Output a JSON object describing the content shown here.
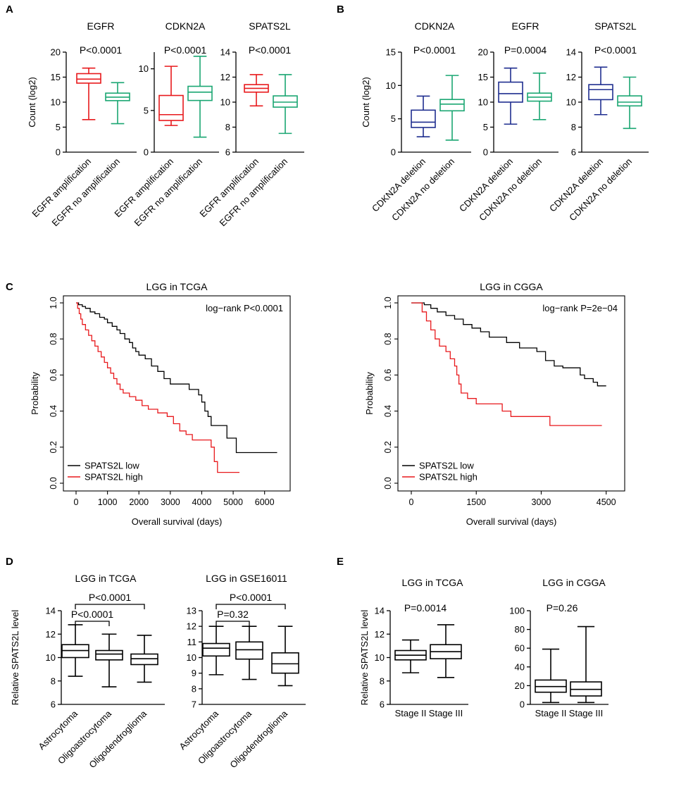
{
  "colors": {
    "red": "#e8191c",
    "green": "#1aa672",
    "blue": "#1f2e8f",
    "black": "#000000"
  },
  "chart_data": [
    {
      "panel": "A",
      "type": "boxplot",
      "title": "EGFR",
      "pvalue": "P<0.0001",
      "ylabel": "Count (log2)",
      "ylim": [
        0,
        20
      ],
      "yticks": [
        0,
        5,
        10,
        15,
        20
      ],
      "categories": [
        "EGFR amplification",
        "EGFR no amplification"
      ],
      "boxes": [
        {
          "min": 6.5,
          "q1": 13.8,
          "median": 14.6,
          "q3": 15.7,
          "max": 16.8,
          "color": "red"
        },
        {
          "min": 5.7,
          "q1": 10.3,
          "median": 11.0,
          "q3": 11.8,
          "max": 13.9,
          "color": "green"
        }
      ]
    },
    {
      "panel": "A",
      "type": "boxplot",
      "title": "CDKN2A",
      "pvalue": "P<0.0001",
      "ylabel": "",
      "ylim": [
        0,
        12
      ],
      "yticks": [
        0,
        5,
        10
      ],
      "categories": [
        "EGFR amplification",
        "EGFR no amplification"
      ],
      "boxes": [
        {
          "min": 3.2,
          "q1": 3.8,
          "median": 4.5,
          "q3": 6.8,
          "max": 10.3,
          "color": "red"
        },
        {
          "min": 1.8,
          "q1": 6.2,
          "median": 7.2,
          "q3": 7.9,
          "max": 11.5,
          "color": "green"
        }
      ]
    },
    {
      "panel": "A",
      "type": "boxplot",
      "title": "SPATS2L",
      "pvalue": "P<0.0001",
      "ylabel": "",
      "ylim": [
        6,
        14
      ],
      "yticks": [
        6,
        8,
        10,
        12,
        14
      ],
      "categories": [
        "EGFR amplification",
        "EGFR no amplification"
      ],
      "boxes": [
        {
          "min": 9.7,
          "q1": 10.8,
          "median": 11.1,
          "q3": 11.4,
          "max": 12.2,
          "color": "red"
        },
        {
          "min": 7.5,
          "q1": 9.6,
          "median": 10.0,
          "q3": 10.5,
          "max": 12.2,
          "color": "green"
        }
      ]
    },
    {
      "panel": "B",
      "type": "boxplot",
      "title": "CDKN2A",
      "pvalue": "P<0.0001",
      "ylabel": "Count (log2)",
      "ylim": [
        0,
        15
      ],
      "yticks": [
        0,
        5,
        10,
        15
      ],
      "categories": [
        "CDKN2A deletion",
        "CDKN2A no deletion"
      ],
      "boxes": [
        {
          "min": 2.3,
          "q1": 3.7,
          "median": 4.5,
          "q3": 6.3,
          "max": 8.4,
          "color": "blue"
        },
        {
          "min": 1.8,
          "q1": 6.2,
          "median": 7.2,
          "q3": 7.9,
          "max": 11.5,
          "color": "green"
        }
      ]
    },
    {
      "panel": "B",
      "type": "boxplot",
      "title": "EGFR",
      "pvalue": "P=0.0004",
      "ylabel": "",
      "ylim": [
        0,
        20
      ],
      "yticks": [
        0,
        5,
        10,
        15,
        20
      ],
      "categories": [
        "CDKN2A deletion",
        "CDKN2A no deletion"
      ],
      "boxes": [
        {
          "min": 5.6,
          "q1": 10.0,
          "median": 11.7,
          "q3": 14.0,
          "max": 16.8,
          "color": "blue"
        },
        {
          "min": 6.5,
          "q1": 10.2,
          "median": 11.0,
          "q3": 11.8,
          "max": 15.8,
          "color": "green"
        }
      ]
    },
    {
      "panel": "B",
      "type": "boxplot",
      "title": "SPATS2L",
      "pvalue": "P<0.0001",
      "ylabel": "",
      "ylim": [
        6,
        14
      ],
      "yticks": [
        6,
        8,
        10,
        12,
        14
      ],
      "categories": [
        "CDKN2A deletion",
        "CDKN2A no deletion"
      ],
      "boxes": [
        {
          "min": 9.0,
          "q1": 10.2,
          "median": 11.0,
          "q3": 11.4,
          "max": 12.8,
          "color": "blue"
        },
        {
          "min": 7.9,
          "q1": 9.7,
          "median": 10.0,
          "q3": 10.5,
          "max": 12.0,
          "color": "green"
        }
      ]
    },
    {
      "panel": "C",
      "type": "line",
      "subtype": "kaplan-meier",
      "title": "LGG in TCGA",
      "annotation": "log−rank P<0.0001",
      "xlabel": "Overall survival (days)",
      "ylabel": "Probability",
      "xlim": [
        0,
        6500
      ],
      "ylim": [
        0,
        1
      ],
      "xticks": [
        0,
        1000,
        2000,
        3000,
        4000,
        5000,
        6000
      ],
      "yticks": [
        0.0,
        0.2,
        0.4,
        0.6,
        0.8,
        1.0
      ],
      "ytick_labels": [
        "0.0",
        "0.2",
        "0.4",
        "0.6",
        "0.8",
        "1.0"
      ],
      "legend_position": "bottom-left",
      "series": [
        {
          "name": "SPATS2L low",
          "color": "black",
          "points": [
            [
              0,
              1.0
            ],
            [
              80,
              0.99
            ],
            [
              200,
              0.98
            ],
            [
              300,
              0.97
            ],
            [
              450,
              0.95
            ],
            [
              600,
              0.94
            ],
            [
              750,
              0.92
            ],
            [
              900,
              0.91
            ],
            [
              1000,
              0.89
            ],
            [
              1150,
              0.87
            ],
            [
              1300,
              0.85
            ],
            [
              1400,
              0.83
            ],
            [
              1550,
              0.8
            ],
            [
              1700,
              0.78
            ],
            [
              1800,
              0.75
            ],
            [
              1900,
              0.73
            ],
            [
              2000,
              0.71
            ],
            [
              2200,
              0.69
            ],
            [
              2400,
              0.65
            ],
            [
              2600,
              0.62
            ],
            [
              2800,
              0.58
            ],
            [
              3000,
              0.55
            ],
            [
              3600,
              0.52
            ],
            [
              3900,
              0.49
            ],
            [
              4000,
              0.45
            ],
            [
              4100,
              0.4
            ],
            [
              4200,
              0.37
            ],
            [
              4300,
              0.32
            ],
            [
              4800,
              0.25
            ],
            [
              5100,
              0.17
            ],
            [
              6400,
              0.17
            ]
          ]
        },
        {
          "name": "SPATS2L high",
          "color": "red",
          "points": [
            [
              0,
              1.0
            ],
            [
              50,
              0.97
            ],
            [
              100,
              0.94
            ],
            [
              150,
              0.91
            ],
            [
              200,
              0.88
            ],
            [
              300,
              0.85
            ],
            [
              400,
              0.82
            ],
            [
              500,
              0.79
            ],
            [
              600,
              0.76
            ],
            [
              700,
              0.73
            ],
            [
              800,
              0.7
            ],
            [
              900,
              0.67
            ],
            [
              1000,
              0.64
            ],
            [
              1100,
              0.61
            ],
            [
              1200,
              0.58
            ],
            [
              1300,
              0.55
            ],
            [
              1400,
              0.52
            ],
            [
              1500,
              0.5
            ],
            [
              1700,
              0.48
            ],
            [
              1900,
              0.46
            ],
            [
              2100,
              0.43
            ],
            [
              2300,
              0.41
            ],
            [
              2600,
              0.39
            ],
            [
              2900,
              0.37
            ],
            [
              3100,
              0.33
            ],
            [
              3300,
              0.29
            ],
            [
              3500,
              0.27
            ],
            [
              3700,
              0.24
            ],
            [
              4300,
              0.2
            ],
            [
              4400,
              0.12
            ],
            [
              4500,
              0.06
            ],
            [
              5200,
              0.06
            ]
          ]
        }
      ]
    },
    {
      "panel": "C",
      "type": "line",
      "subtype": "kaplan-meier",
      "title": "LGG in CGGA",
      "annotation": "log−rank P=2e−04",
      "xlabel": "Overall survival (days)",
      "ylabel": "Probability",
      "xlim": [
        0,
        4700
      ],
      "ylim": [
        0,
        1
      ],
      "xticks": [
        0,
        1500,
        3000,
        4500
      ],
      "yticks": [
        0.0,
        0.2,
        0.4,
        0.6,
        0.8,
        1.0
      ],
      "ytick_labels": [
        "0.0",
        "0.2",
        "0.4",
        "0.6",
        "0.8",
        "1.0"
      ],
      "legend_position": "bottom-left",
      "series": [
        {
          "name": "SPATS2L low",
          "color": "black",
          "points": [
            [
              0,
              1.0
            ],
            [
              300,
              0.99
            ],
            [
              450,
              0.97
            ],
            [
              600,
              0.95
            ],
            [
              800,
              0.93
            ],
            [
              1000,
              0.91
            ],
            [
              1200,
              0.88
            ],
            [
              1400,
              0.86
            ],
            [
              1600,
              0.84
            ],
            [
              1800,
              0.81
            ],
            [
              2200,
              0.78
            ],
            [
              2500,
              0.75
            ],
            [
              2900,
              0.73
            ],
            [
              3100,
              0.68
            ],
            [
              3300,
              0.65
            ],
            [
              3500,
              0.64
            ],
            [
              3900,
              0.6
            ],
            [
              4000,
              0.58
            ],
            [
              4200,
              0.56
            ],
            [
              4300,
              0.54
            ],
            [
              4500,
              0.54
            ]
          ]
        },
        {
          "name": "SPATS2L high",
          "color": "red",
          "points": [
            [
              0,
              1.0
            ],
            [
              250,
              0.95
            ],
            [
              350,
              0.9
            ],
            [
              450,
              0.85
            ],
            [
              550,
              0.8
            ],
            [
              650,
              0.76
            ],
            [
              800,
              0.73
            ],
            [
              900,
              0.69
            ],
            [
              1000,
              0.65
            ],
            [
              1050,
              0.6
            ],
            [
              1100,
              0.55
            ],
            [
              1150,
              0.5
            ],
            [
              1300,
              0.47
            ],
            [
              1500,
              0.44
            ],
            [
              2100,
              0.4
            ],
            [
              2300,
              0.37
            ],
            [
              3200,
              0.32
            ],
            [
              4400,
              0.32
            ]
          ]
        }
      ]
    },
    {
      "panel": "D",
      "type": "boxplot",
      "title": "LGG in TCGA",
      "ylabel": "Relative SPATS2L level",
      "ylim": [
        6,
        14
      ],
      "yticks": [
        6,
        8,
        10,
        12,
        14
      ],
      "categories": [
        "Astrocytoma",
        "Oligoastrocytoma",
        "Oligodendroglioma"
      ],
      "brackets": [
        {
          "from": 0,
          "to": 1,
          "label": "P<0.0001"
        },
        {
          "from": 0,
          "to": 2,
          "label": "P<0.0001"
        }
      ],
      "boxes": [
        {
          "min": 8.4,
          "q1": 10.0,
          "median": 10.6,
          "q3": 11.1,
          "max": 12.8,
          "color": "black"
        },
        {
          "min": 7.5,
          "q1": 9.8,
          "median": 10.3,
          "q3": 10.6,
          "max": 12.0,
          "color": "black"
        },
        {
          "min": 7.9,
          "q1": 9.4,
          "median": 9.9,
          "q3": 10.3,
          "max": 11.9,
          "color": "black"
        }
      ]
    },
    {
      "panel": "D",
      "type": "boxplot",
      "title": "LGG in GSE16011",
      "ylabel": "",
      "ylim": [
        7,
        13
      ],
      "yticks": [
        7,
        8,
        9,
        10,
        11,
        12,
        13
      ],
      "categories": [
        "Astrocytoma",
        "Oligoastrocytoma",
        "Oligodendroglioma"
      ],
      "brackets": [
        {
          "from": 0,
          "to": 1,
          "label": "P=0.32"
        },
        {
          "from": 0,
          "to": 2,
          "label": "P<0.0001"
        }
      ],
      "boxes": [
        {
          "min": 8.9,
          "q1": 10.1,
          "median": 10.6,
          "q3": 10.9,
          "max": 12.0,
          "color": "black"
        },
        {
          "min": 8.6,
          "q1": 9.9,
          "median": 10.5,
          "q3": 11.0,
          "max": 12.0,
          "color": "black"
        },
        {
          "min": 8.2,
          "q1": 9.0,
          "median": 9.6,
          "q3": 10.3,
          "max": 12.0,
          "color": "black"
        }
      ]
    },
    {
      "panel": "E",
      "type": "boxplot",
      "title": "LGG in TCGA",
      "pvalue": "P=0.0014",
      "ylabel": "Relative SPATS2L level",
      "ylim": [
        6,
        14
      ],
      "yticks": [
        6,
        8,
        10,
        12,
        14
      ],
      "categories": [
        "Stage II",
        "Stage III"
      ],
      "boxes": [
        {
          "min": 8.7,
          "q1": 9.8,
          "median": 10.2,
          "q3": 10.6,
          "max": 11.5,
          "color": "black"
        },
        {
          "min": 8.3,
          "q1": 9.9,
          "median": 10.5,
          "q3": 11.1,
          "max": 12.8,
          "color": "black"
        }
      ]
    },
    {
      "panel": "E",
      "type": "boxplot",
      "title": "LGG in CGGA",
      "pvalue": "P=0.26",
      "ylabel": "",
      "ylim": [
        0,
        100
      ],
      "yticks": [
        0,
        20,
        40,
        60,
        80,
        100
      ],
      "categories": [
        "Stage II",
        "Stage III"
      ],
      "boxes": [
        {
          "min": 2,
          "q1": 13,
          "median": 19,
          "q3": 26,
          "max": 59,
          "color": "black"
        },
        {
          "min": 2,
          "q1": 9,
          "median": 16,
          "q3": 24,
          "max": 83,
          "color": "black"
        }
      ]
    }
  ],
  "panel_labels": [
    "A",
    "B",
    "C",
    "D",
    "E"
  ]
}
